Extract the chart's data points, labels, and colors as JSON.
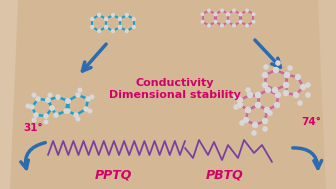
{
  "background_color": "#d4b896",
  "conductivity_text": "Conductivity",
  "stability_text": "Dimensional stability",
  "label_pptq": "PPTQ",
  "label_pbtq": "PBTQ",
  "angle_left": "31°",
  "angle_right": "74°",
  "text_color_magenta": "#d4006a",
  "arrow_color": "#2b6cb0",
  "line_color_zigzag": "#7b3fa0",
  "mol_color_blue": "#1aa0c8",
  "mol_color_pink": "#cc6699",
  "atom_color_white": "#d8d8d8",
  "border_highlight": "#e8d0a8"
}
